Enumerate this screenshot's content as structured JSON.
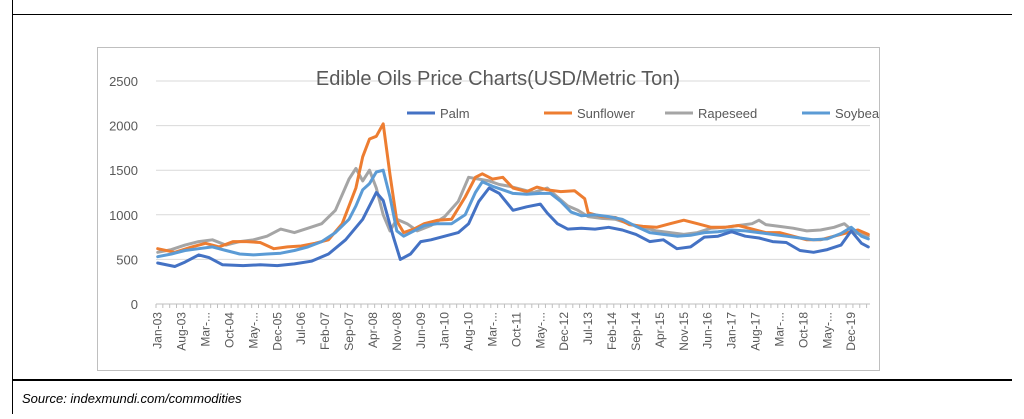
{
  "source_text": "Source: indexmundi.com/commodities",
  "chart_data": {
    "type": "line",
    "title": "Edible Oils Price Charts(USD/Metric Ton)",
    "xlabel": "",
    "ylabel": "",
    "ylim": [
      0,
      2500
    ],
    "yticks": [
      0,
      500,
      1000,
      1500,
      2000,
      2500
    ],
    "grid": true,
    "legend_position": "top",
    "x_tick_labels": [
      "Jan-03",
      "Aug-03",
      "Mar-...",
      "Oct-04",
      "May-...",
      "Dec-05",
      "Jul-06",
      "Feb-07",
      "Sep-07",
      "Apr-08",
      "Nov-08",
      "Jun-09",
      "Jan-10",
      "Aug-10",
      "Mar-...",
      "Oct-11",
      "May-...",
      "Dec-12",
      "Jul-13",
      "Feb-14",
      "Sep-14",
      "Apr-15",
      "Nov-15",
      "Jun-16",
      "Jan-17",
      "Aug-17",
      "Mar-...",
      "Oct-18",
      "May-...",
      "Dec-19"
    ],
    "x_tick_index": [
      0,
      7,
      14,
      21,
      28,
      35,
      42,
      49,
      56,
      63,
      70,
      77,
      84,
      91,
      98,
      105,
      112,
      119,
      126,
      133,
      140,
      147,
      154,
      161,
      168,
      175,
      182,
      189,
      196,
      203
    ],
    "x_count": 209,
    "series": [
      {
        "name": "Palm",
        "color": "#4472c4",
        "points": [
          [
            0,
            460
          ],
          [
            5,
            420
          ],
          [
            8,
            470
          ],
          [
            12,
            550
          ],
          [
            15,
            520
          ],
          [
            19,
            440
          ],
          [
            25,
            430
          ],
          [
            30,
            440
          ],
          [
            35,
            430
          ],
          [
            40,
            450
          ],
          [
            45,
            480
          ],
          [
            50,
            560
          ],
          [
            55,
            720
          ],
          [
            60,
            950
          ],
          [
            64,
            1250
          ],
          [
            66,
            1160
          ],
          [
            69,
            750
          ],
          [
            71,
            500
          ],
          [
            74,
            560
          ],
          [
            77,
            700
          ],
          [
            80,
            720
          ],
          [
            84,
            760
          ],
          [
            88,
            800
          ],
          [
            91,
            900
          ],
          [
            94,
            1150
          ],
          [
            97,
            1300
          ],
          [
            100,
            1240
          ],
          [
            104,
            1050
          ],
          [
            108,
            1090
          ],
          [
            112,
            1120
          ],
          [
            114,
            1020
          ],
          [
            117,
            900
          ],
          [
            120,
            840
          ],
          [
            124,
            850
          ],
          [
            128,
            840
          ],
          [
            132,
            860
          ],
          [
            136,
            830
          ],
          [
            140,
            780
          ],
          [
            144,
            700
          ],
          [
            148,
            720
          ],
          [
            152,
            620
          ],
          [
            156,
            640
          ],
          [
            160,
            750
          ],
          [
            164,
            760
          ],
          [
            168,
            810
          ],
          [
            172,
            760
          ],
          [
            176,
            740
          ],
          [
            180,
            700
          ],
          [
            184,
            690
          ],
          [
            188,
            600
          ],
          [
            192,
            580
          ],
          [
            196,
            610
          ],
          [
            200,
            660
          ],
          [
            203,
            820
          ],
          [
            206,
            680
          ],
          [
            208,
            640
          ]
        ]
      },
      {
        "name": "Sunflower",
        "color": "#ed7d31",
        "points": [
          [
            0,
            620
          ],
          [
            5,
            580
          ],
          [
            10,
            640
          ],
          [
            14,
            680
          ],
          [
            18,
            640
          ],
          [
            22,
            700
          ],
          [
            26,
            700
          ],
          [
            30,
            690
          ],
          [
            34,
            620
          ],
          [
            38,
            640
          ],
          [
            42,
            650
          ],
          [
            46,
            680
          ],
          [
            50,
            720
          ],
          [
            54,
            900
          ],
          [
            58,
            1300
          ],
          [
            60,
            1650
          ],
          [
            62,
            1850
          ],
          [
            64,
            1880
          ],
          [
            66,
            2020
          ],
          [
            68,
            1450
          ],
          [
            70,
            930
          ],
          [
            72,
            800
          ],
          [
            75,
            840
          ],
          [
            78,
            900
          ],
          [
            82,
            940
          ],
          [
            86,
            950
          ],
          [
            90,
            1200
          ],
          [
            93,
            1420
          ],
          [
            95,
            1460
          ],
          [
            98,
            1400
          ],
          [
            101,
            1420
          ],
          [
            104,
            1300
          ],
          [
            108,
            1260
          ],
          [
            111,
            1310
          ],
          [
            114,
            1280
          ],
          [
            118,
            1260
          ],
          [
            122,
            1270
          ],
          [
            125,
            1180
          ],
          [
            126,
            1020
          ],
          [
            130,
            980
          ],
          [
            134,
            970
          ],
          [
            138,
            890
          ],
          [
            142,
            870
          ],
          [
            146,
            860
          ],
          [
            150,
            900
          ],
          [
            154,
            940
          ],
          [
            158,
            900
          ],
          [
            162,
            860
          ],
          [
            166,
            860
          ],
          [
            170,
            880
          ],
          [
            174,
            840
          ],
          [
            178,
            800
          ],
          [
            182,
            800
          ],
          [
            186,
            760
          ],
          [
            190,
            720
          ],
          [
            194,
            720
          ],
          [
            198,
            760
          ],
          [
            202,
            800
          ],
          [
            205,
            830
          ],
          [
            208,
            780
          ]
        ]
      },
      {
        "name": "Rapeseed",
        "color": "#a5a5a5",
        "points": [
          [
            0,
            580
          ],
          [
            4,
            610
          ],
          [
            8,
            660
          ],
          [
            12,
            700
          ],
          [
            16,
            720
          ],
          [
            20,
            660
          ],
          [
            24,
            700
          ],
          [
            28,
            720
          ],
          [
            32,
            760
          ],
          [
            36,
            840
          ],
          [
            40,
            800
          ],
          [
            44,
            850
          ],
          [
            48,
            900
          ],
          [
            52,
            1050
          ],
          [
            56,
            1400
          ],
          [
            58,
            1520
          ],
          [
            60,
            1380
          ],
          [
            62,
            1500
          ],
          [
            64,
            1300
          ],
          [
            66,
            1000
          ],
          [
            68,
            820
          ],
          [
            70,
            950
          ],
          [
            73,
            900
          ],
          [
            76,
            820
          ],
          [
            80,
            880
          ],
          [
            84,
            980
          ],
          [
            88,
            1150
          ],
          [
            91,
            1420
          ],
          [
            94,
            1400
          ],
          [
            97,
            1380
          ],
          [
            100,
            1340
          ],
          [
            103,
            1320
          ],
          [
            106,
            1290
          ],
          [
            110,
            1250
          ],
          [
            114,
            1300
          ],
          [
            117,
            1200
          ],
          [
            120,
            1100
          ],
          [
            123,
            1050
          ],
          [
            126,
            980
          ],
          [
            130,
            960
          ],
          [
            134,
            950
          ],
          [
            138,
            900
          ],
          [
            142,
            860
          ],
          [
            146,
            820
          ],
          [
            150,
            800
          ],
          [
            154,
            780
          ],
          [
            158,
            800
          ],
          [
            162,
            850
          ],
          [
            166,
            860
          ],
          [
            170,
            880
          ],
          [
            174,
            900
          ],
          [
            176,
            940
          ],
          [
            178,
            890
          ],
          [
            182,
            870
          ],
          [
            186,
            850
          ],
          [
            190,
            820
          ],
          [
            194,
            830
          ],
          [
            198,
            860
          ],
          [
            201,
            900
          ],
          [
            204,
            800
          ],
          [
            208,
            760
          ]
        ]
      },
      {
        "name": "Soybean",
        "color": "#5b9bd5",
        "points": [
          [
            0,
            530
          ],
          [
            4,
            560
          ],
          [
            8,
            600
          ],
          [
            12,
            620
          ],
          [
            16,
            640
          ],
          [
            20,
            600
          ],
          [
            24,
            560
          ],
          [
            28,
            550
          ],
          [
            32,
            560
          ],
          [
            36,
            570
          ],
          [
            40,
            600
          ],
          [
            44,
            640
          ],
          [
            48,
            700
          ],
          [
            52,
            800
          ],
          [
            56,
            950
          ],
          [
            58,
            1100
          ],
          [
            60,
            1280
          ],
          [
            62,
            1350
          ],
          [
            64,
            1480
          ],
          [
            66,
            1500
          ],
          [
            68,
            1200
          ],
          [
            70,
            820
          ],
          [
            72,
            760
          ],
          [
            75,
            820
          ],
          [
            78,
            880
          ],
          [
            82,
            900
          ],
          [
            86,
            900
          ],
          [
            90,
            1000
          ],
          [
            93,
            1250
          ],
          [
            95,
            1370
          ],
          [
            98,
            1320
          ],
          [
            101,
            1280
          ],
          [
            104,
            1240
          ],
          [
            108,
            1230
          ],
          [
            112,
            1240
          ],
          [
            115,
            1240
          ],
          [
            118,
            1150
          ],
          [
            121,
            1030
          ],
          [
            124,
            990
          ],
          [
            128,
            1000
          ],
          [
            132,
            980
          ],
          [
            136,
            950
          ],
          [
            140,
            870
          ],
          [
            144,
            800
          ],
          [
            148,
            780
          ],
          [
            152,
            760
          ],
          [
            156,
            770
          ],
          [
            160,
            800
          ],
          [
            164,
            810
          ],
          [
            168,
            830
          ],
          [
            172,
            820
          ],
          [
            176,
            800
          ],
          [
            180,
            780
          ],
          [
            184,
            760
          ],
          [
            188,
            740
          ],
          [
            192,
            720
          ],
          [
            196,
            730
          ],
          [
            200,
            790
          ],
          [
            203,
            860
          ],
          [
            206,
            760
          ],
          [
            208,
            730
          ]
        ]
      }
    ]
  }
}
